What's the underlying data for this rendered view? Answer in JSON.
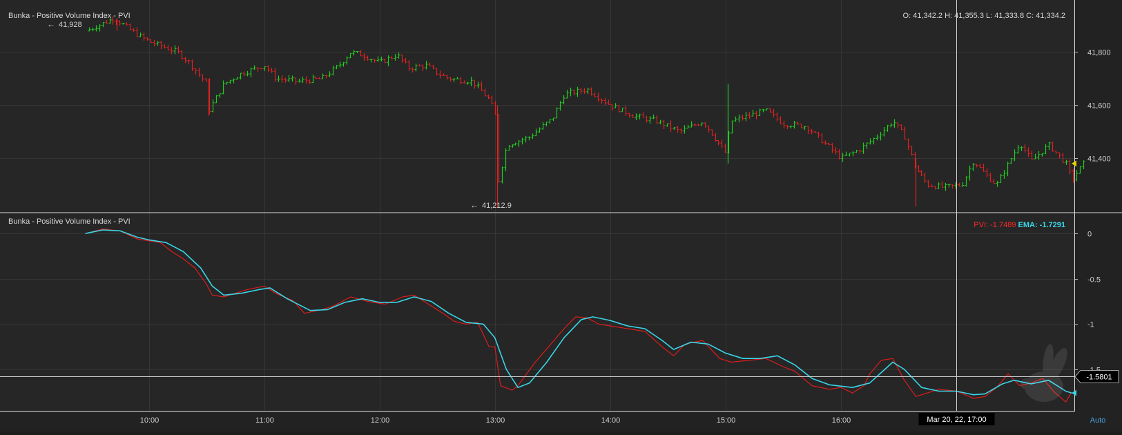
{
  "chart_data": {
    "type": "line",
    "upper_panel": {
      "title": "Bunka - Positive Volume Index - PVI",
      "ohlc_label": "O: 41,342.2 H: 41,355.3 L: 41,333.8 C: 41,334.2",
      "high_marker": "41,928",
      "low_marker": "41,212.9",
      "y_ticks": [
        "41,800",
        "41,600",
        "41,400"
      ],
      "ylim": [
        41200,
        41960
      ],
      "colors": {
        "up": "#22cc22",
        "down": "#dd2222",
        "last_price": "#e0d000"
      },
      "price_path": [
        [
          9.45,
          41880
        ],
        [
          9.7,
          41928
        ],
        [
          9.85,
          41880
        ],
        [
          10.0,
          41840
        ],
        [
          10.25,
          41800
        ],
        [
          10.35,
          41760
        ],
        [
          10.5,
          41680
        ],
        [
          10.52,
          41580
        ],
        [
          10.65,
          41680
        ],
        [
          10.8,
          41720
        ],
        [
          11.0,
          41750
        ],
        [
          11.1,
          41700
        ],
        [
          11.3,
          41690
        ],
        [
          11.5,
          41700
        ],
        [
          11.65,
          41750
        ],
        [
          11.75,
          41800
        ],
        [
          11.85,
          41790
        ],
        [
          12.0,
          41760
        ],
        [
          12.15,
          41790
        ],
        [
          12.25,
          41740
        ],
        [
          12.4,
          41750
        ],
        [
          12.5,
          41720
        ],
        [
          12.6,
          41700
        ],
        [
          12.8,
          41690
        ],
        [
          12.95,
          41620
        ],
        [
          13.0,
          41560
        ],
        [
          13.02,
          41300
        ],
        [
          13.1,
          41450
        ],
        [
          13.3,
          41480
        ],
        [
          13.5,
          41550
        ],
        [
          13.6,
          41640
        ],
        [
          13.8,
          41660
        ],
        [
          14.0,
          41600
        ],
        [
          14.2,
          41560
        ],
        [
          14.4,
          41540
        ],
        [
          14.6,
          41500
        ],
        [
          14.8,
          41540
        ],
        [
          15.0,
          41420
        ],
        [
          15.05,
          41540
        ],
        [
          15.2,
          41560
        ],
        [
          15.35,
          41580
        ],
        [
          15.5,
          41530
        ],
        [
          15.7,
          41520
        ],
        [
          15.85,
          41460
        ],
        [
          16.0,
          41400
        ],
        [
          16.15,
          41430
        ],
        [
          16.3,
          41480
        ],
        [
          16.45,
          41540
        ],
        [
          16.55,
          41480
        ],
        [
          16.65,
          41360
        ],
        [
          16.75,
          41300
        ],
        [
          16.9,
          41290
        ],
        [
          17.05,
          41300
        ],
        [
          17.15,
          41390
        ],
        [
          17.25,
          41340
        ],
        [
          17.35,
          41300
        ],
        [
          17.45,
          41380
        ],
        [
          17.55,
          41460
        ],
        [
          17.65,
          41390
        ],
        [
          17.8,
          41450
        ],
        [
          17.95,
          41380
        ],
        [
          18.0,
          41320
        ],
        [
          18.1,
          41380
        ]
      ],
      "last_price": 41380
    },
    "lower_panel": {
      "title": "Bunka - Positive Volume Index - PVI",
      "legend": {
        "pvi_label": "PVI: -1.7489",
        "ema_label": "EMA: -1.7291"
      },
      "y_ticks": [
        "0",
        "-0.5",
        "-1",
        "-1.5"
      ],
      "ylim": [
        -1.95,
        0.2
      ],
      "crosshair_value": -1.5801,
      "crosshair_label": "-1.5801",
      "series": [
        {
          "name": "PVI",
          "color": "#dd1c1c",
          "points": [
            [
              9.45,
              0.0
            ],
            [
              9.6,
              0.05
            ],
            [
              9.75,
              0.03
            ],
            [
              9.9,
              -0.06
            ],
            [
              10.0,
              -0.08
            ],
            [
              10.1,
              -0.1
            ],
            [
              10.2,
              -0.2
            ],
            [
              10.3,
              -0.28
            ],
            [
              10.4,
              -0.38
            ],
            [
              10.5,
              -0.56
            ],
            [
              10.55,
              -0.68
            ],
            [
              10.65,
              -0.7
            ],
            [
              10.75,
              -0.66
            ],
            [
              10.85,
              -0.62
            ],
            [
              11.0,
              -0.58
            ],
            [
              11.1,
              -0.66
            ],
            [
              11.25,
              -0.74
            ],
            [
              11.35,
              -0.88
            ],
            [
              11.5,
              -0.84
            ],
            [
              11.6,
              -0.8
            ],
            [
              11.75,
              -0.7
            ],
            [
              11.9,
              -0.75
            ],
            [
              12.05,
              -0.78
            ],
            [
              12.2,
              -0.7
            ],
            [
              12.3,
              -0.68
            ],
            [
              12.45,
              -0.8
            ],
            [
              12.55,
              -0.88
            ],
            [
              12.65,
              -0.97
            ],
            [
              12.75,
              -1.0
            ],
            [
              12.85,
              -0.98
            ],
            [
              12.95,
              -1.25
            ],
            [
              13.0,
              -1.25
            ],
            [
              13.05,
              -1.68
            ],
            [
              13.15,
              -1.73
            ],
            [
              13.2,
              -1.68
            ],
            [
              13.35,
              -1.42
            ],
            [
              13.5,
              -1.2
            ],
            [
              13.6,
              -1.05
            ],
            [
              13.7,
              -0.92
            ],
            [
              13.8,
              -0.93
            ],
            [
              13.9,
              -1.0
            ],
            [
              14.0,
              -1.02
            ],
            [
              14.15,
              -1.05
            ],
            [
              14.3,
              -1.08
            ],
            [
              14.45,
              -1.25
            ],
            [
              14.55,
              -1.35
            ],
            [
              14.65,
              -1.22
            ],
            [
              14.8,
              -1.18
            ],
            [
              14.95,
              -1.38
            ],
            [
              15.05,
              -1.42
            ],
            [
              15.2,
              -1.4
            ],
            [
              15.35,
              -1.38
            ],
            [
              15.5,
              -1.47
            ],
            [
              15.6,
              -1.52
            ],
            [
              15.75,
              -1.68
            ],
            [
              15.9,
              -1.72
            ],
            [
              16.0,
              -1.7
            ],
            [
              16.1,
              -1.76
            ],
            [
              16.2,
              -1.68
            ],
            [
              16.25,
              -1.55
            ],
            [
              16.35,
              -1.4
            ],
            [
              16.45,
              -1.38
            ],
            [
              16.55,
              -1.62
            ],
            [
              16.65,
              -1.8
            ],
            [
              16.75,
              -1.76
            ],
            [
              16.85,
              -1.72
            ],
            [
              17.0,
              -1.74
            ],
            [
              17.15,
              -1.82
            ],
            [
              17.25,
              -1.8
            ],
            [
              17.35,
              -1.7
            ],
            [
              17.45,
              -1.55
            ],
            [
              17.55,
              -1.68
            ],
            [
              17.65,
              -1.65
            ],
            [
              17.75,
              -1.6
            ],
            [
              17.85,
              -1.75
            ],
            [
              17.95,
              -1.86
            ],
            [
              18.0,
              -1.75
            ]
          ]
        },
        {
          "name": "EMA",
          "color": "#39d6e8",
          "points": [
            [
              9.45,
              0.0
            ],
            [
              9.6,
              0.04
            ],
            [
              9.75,
              0.03
            ],
            [
              9.9,
              -0.04
            ],
            [
              10.0,
              -0.07
            ],
            [
              10.15,
              -0.1
            ],
            [
              10.3,
              -0.2
            ],
            [
              10.45,
              -0.38
            ],
            [
              10.55,
              -0.58
            ],
            [
              10.65,
              -0.68
            ],
            [
              10.8,
              -0.66
            ],
            [
              10.95,
              -0.62
            ],
            [
              11.05,
              -0.6
            ],
            [
              11.2,
              -0.72
            ],
            [
              11.4,
              -0.85
            ],
            [
              11.55,
              -0.84
            ],
            [
              11.7,
              -0.76
            ],
            [
              11.85,
              -0.72
            ],
            [
              12.0,
              -0.76
            ],
            [
              12.15,
              -0.76
            ],
            [
              12.3,
              -0.7
            ],
            [
              12.45,
              -0.75
            ],
            [
              12.6,
              -0.88
            ],
            [
              12.75,
              -0.98
            ],
            [
              12.9,
              -1.0
            ],
            [
              13.0,
              -1.15
            ],
            [
              13.1,
              -1.5
            ],
            [
              13.2,
              -1.7
            ],
            [
              13.3,
              -1.65
            ],
            [
              13.45,
              -1.42
            ],
            [
              13.6,
              -1.15
            ],
            [
              13.75,
              -0.95
            ],
            [
              13.85,
              -0.92
            ],
            [
              14.0,
              -0.96
            ],
            [
              14.15,
              -1.02
            ],
            [
              14.3,
              -1.05
            ],
            [
              14.45,
              -1.18
            ],
            [
              14.55,
              -1.28
            ],
            [
              14.7,
              -1.2
            ],
            [
              14.85,
              -1.22
            ],
            [
              15.0,
              -1.32
            ],
            [
              15.15,
              -1.38
            ],
            [
              15.3,
              -1.38
            ],
            [
              15.45,
              -1.35
            ],
            [
              15.6,
              -1.45
            ],
            [
              15.75,
              -1.6
            ],
            [
              15.9,
              -1.67
            ],
            [
              16.1,
              -1.7
            ],
            [
              16.25,
              -1.65
            ],
            [
              16.38,
              -1.5
            ],
            [
              16.45,
              -1.42
            ],
            [
              16.55,
              -1.5
            ],
            [
              16.7,
              -1.7
            ],
            [
              16.85,
              -1.74
            ],
            [
              17.0,
              -1.74
            ],
            [
              17.15,
              -1.78
            ],
            [
              17.25,
              -1.77
            ],
            [
              17.4,
              -1.66
            ],
            [
              17.5,
              -1.62
            ],
            [
              17.65,
              -1.66
            ],
            [
              17.8,
              -1.62
            ],
            [
              17.95,
              -1.74
            ],
            [
              18.0,
              -1.76
            ]
          ]
        }
      ]
    },
    "x_ticks": [
      "10:00",
      "11:00",
      "12:00",
      "13:00",
      "14:00",
      "15:00",
      "16:00"
    ],
    "x_tick_values": [
      10,
      11,
      12,
      13,
      14,
      15,
      16
    ],
    "xlim": [
      8.71,
      18.03
    ],
    "crosshair_time": 17.0,
    "crosshair_time_label": "Mar 20, 22, 17:00",
    "scale_mode_label": "Auto"
  }
}
